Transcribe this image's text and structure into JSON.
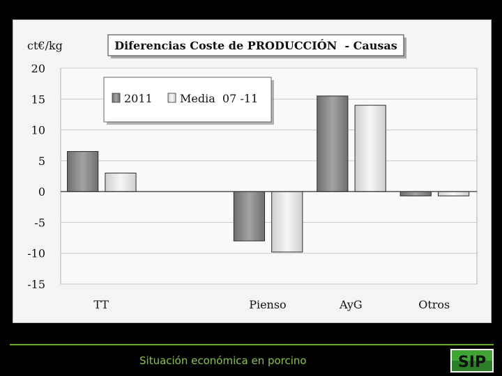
{
  "slide": {
    "footer_text": "Situación económica en porcino",
    "logo_text": "SIP"
  },
  "colors": {
    "background": "#000000",
    "panel": "#f4f4f4",
    "series_2011": "#8c8c8c",
    "series_media": "#e6e6e6",
    "footer": "#8bc34a",
    "logo_green": "#3fa535"
  },
  "chart_data": {
    "type": "bar",
    "title": "Diferencias Coste de PRODUCCIÓN  - Causas",
    "ylabel": "ct€/kg",
    "xlabel": "",
    "categories": [
      "TT",
      "",
      "Pienso",
      "AyG",
      "Otros"
    ],
    "series": [
      {
        "name": "2011",
        "values": [
          6.5,
          null,
          -8.0,
          15.5,
          -0.7
        ]
      },
      {
        "name": "Media  07 -11",
        "values": [
          3.0,
          null,
          -9.8,
          14.0,
          -0.7
        ]
      }
    ],
    "ylim": [
      -15,
      20
    ],
    "yticks": [
      "20",
      "15",
      "10",
      "5",
      "0",
      "-5",
      "-10",
      "-15"
    ],
    "grid": true,
    "legend_position": "top-left"
  }
}
